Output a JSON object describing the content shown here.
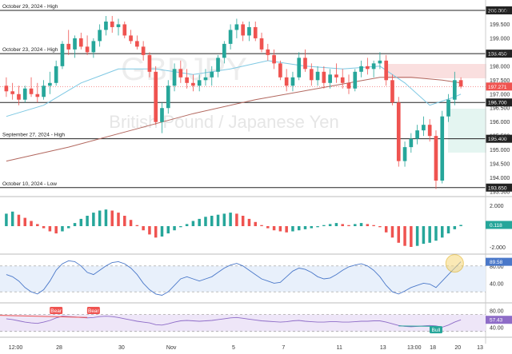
{
  "watermark": {
    "symbol": "GBPJPY",
    "subtitle": "British Pound / Japanese Yen"
  },
  "colors": {
    "up": "#26a69a",
    "down": "#ef5350",
    "ema_slow": "#b2675e",
    "ema_fast": "#7ec8e3",
    "stoch": "#4a78c9",
    "rsi": "#8e6cc7",
    "bear": "#ef5350",
    "bull": "#26a69a"
  },
  "time_axis": {
    "labels": [
      "12:00",
      "28",
      "30",
      "Nov",
      "5",
      "7",
      "11",
      "13",
      "13:00",
      "18",
      "20",
      "13"
    ]
  },
  "main_axis": {
    "ticks": [
      "200.000",
      "199.500",
      "199.000",
      "198.500",
      "198.000",
      "197.500",
      "197.000",
      "196.500",
      "196.000",
      "195.500",
      "195.000",
      "194.500",
      "194.000",
      "193.500"
    ],
    "current_price": "197.271"
  },
  "levels": [
    {
      "label": "October 29, 2024 - High",
      "price": "200.000"
    },
    {
      "label": "October 23, 2024 - High",
      "price": "198.450"
    },
    {
      "label": "",
      "price": "196.700"
    },
    {
      "label": "September 27, 2024 - High",
      "price": "195.400"
    },
    {
      "label": "October 10, 2024 - Low",
      "price": "193.650"
    }
  ],
  "ao_panel": {
    "ticks": [
      "2.000",
      "-2.000"
    ],
    "current": "0.118"
  },
  "stoch_panel": {
    "ticks": [
      "80.00",
      "40.00"
    ],
    "current": "89.58"
  },
  "rsi_panel": {
    "ticks": [
      "80.00",
      "40.00"
    ],
    "current": "57.43",
    "signals": [
      {
        "text": "Bear"
      },
      {
        "text": "Bear"
      },
      {
        "text": "Bull"
      }
    ]
  },
  "chart_data": {
    "type": "candlestick",
    "ylim": [
      193.5,
      200.2
    ],
    "candles": [
      [
        197.3,
        197.6,
        196.9,
        197.1
      ],
      [
        197.1,
        197.4,
        196.8,
        197.0
      ],
      [
        197.0,
        197.3,
        196.6,
        196.8
      ],
      [
        196.8,
        197.3,
        196.7,
        197.2
      ],
      [
        197.2,
        197.6,
        196.9,
        197.0
      ],
      [
        197.0,
        197.4,
        196.7,
        196.9
      ],
      [
        196.9,
        197.5,
        196.8,
        197.3
      ],
      [
        197.3,
        197.8,
        197.0,
        197.4
      ],
      [
        197.4,
        198.2,
        197.3,
        198.0
      ],
      [
        198.0,
        198.9,
        197.9,
        198.8
      ],
      [
        198.8,
        199.3,
        198.4,
        198.6
      ],
      [
        198.6,
        199.1,
        198.3,
        199.0
      ],
      [
        199.0,
        199.2,
        198.6,
        198.7
      ],
      [
        198.7,
        199.1,
        198.4,
        198.5
      ],
      [
        198.5,
        199.0,
        198.3,
        198.9
      ],
      [
        198.9,
        199.5,
        198.7,
        199.3
      ],
      [
        199.3,
        199.8,
        199.1,
        199.6
      ],
      [
        199.6,
        199.8,
        199.2,
        199.4
      ],
      [
        199.4,
        199.7,
        199.1,
        199.5
      ],
      [
        199.5,
        199.6,
        199.0,
        199.1
      ],
      [
        199.1,
        199.3,
        198.8,
        198.9
      ],
      [
        198.9,
        199.1,
        198.6,
        198.7
      ],
      [
        198.7,
        198.9,
        198.2,
        198.4
      ],
      [
        198.4,
        198.5,
        197.6,
        197.8
      ],
      [
        197.8,
        198.0,
        195.9,
        196.0
      ],
      [
        196.0,
        196.7,
        195.6,
        196.5
      ],
      [
        196.5,
        197.5,
        196.3,
        197.3
      ],
      [
        197.3,
        198.1,
        197.1,
        197.9
      ],
      [
        197.9,
        198.2,
        197.4,
        197.6
      ],
      [
        197.6,
        197.9,
        197.2,
        197.4
      ],
      [
        197.4,
        197.7,
        197.1,
        197.3
      ],
      [
        197.3,
        197.7,
        197.1,
        197.5
      ],
      [
        197.5,
        197.9,
        197.3,
        197.6
      ],
      [
        197.6,
        198.0,
        197.3,
        197.8
      ],
      [
        197.8,
        198.4,
        197.6,
        198.3
      ],
      [
        198.3,
        198.9,
        198.1,
        198.8
      ],
      [
        198.8,
        199.5,
        198.6,
        199.3
      ],
      [
        199.3,
        199.7,
        199.0,
        199.5
      ],
      [
        199.5,
        199.6,
        198.9,
        199.1
      ],
      [
        199.1,
        199.6,
        198.9,
        199.4
      ],
      [
        199.4,
        199.6,
        198.9,
        199.0
      ],
      [
        199.0,
        199.2,
        198.5,
        198.6
      ],
      [
        198.6,
        198.8,
        198.2,
        198.4
      ],
      [
        198.4,
        198.6,
        197.9,
        198.1
      ],
      [
        198.1,
        198.2,
        197.5,
        197.6
      ],
      [
        197.6,
        197.9,
        197.1,
        197.3
      ],
      [
        197.3,
        197.8,
        197.1,
        197.6
      ],
      [
        197.6,
        198.5,
        197.5,
        198.3
      ],
      [
        198.3,
        198.6,
        197.8,
        197.9
      ],
      [
        197.9,
        198.1,
        197.3,
        197.5
      ],
      [
        197.5,
        198.0,
        197.3,
        197.8
      ],
      [
        197.8,
        198.0,
        197.2,
        197.4
      ],
      [
        197.4,
        197.9,
        197.2,
        197.7
      ],
      [
        197.7,
        198.1,
        197.4,
        197.6
      ],
      [
        197.6,
        197.9,
        197.2,
        197.4
      ],
      [
        197.4,
        197.7,
        197.0,
        197.2
      ],
      [
        197.2,
        197.9,
        197.1,
        197.8
      ],
      [
        197.8,
        198.2,
        197.6,
        198.0
      ],
      [
        198.0,
        198.3,
        197.7,
        197.9
      ],
      [
        197.9,
        198.2,
        197.6,
        198.1
      ],
      [
        198.1,
        198.5,
        197.9,
        198.2
      ],
      [
        198.2,
        198.4,
        197.3,
        197.5
      ],
      [
        197.5,
        197.7,
        196.6,
        196.7
      ],
      [
        196.7,
        196.9,
        194.4,
        194.6
      ],
      [
        194.6,
        195.3,
        194.4,
        195.1
      ],
      [
        195.1,
        195.6,
        194.9,
        195.4
      ],
      [
        195.4,
        195.9,
        195.2,
        195.7
      ],
      [
        195.7,
        196.2,
        195.5,
        195.9
      ],
      [
        195.9,
        196.1,
        195.3,
        195.5
      ],
      [
        195.5,
        195.7,
        193.6,
        193.9
      ],
      [
        193.9,
        196.4,
        193.8,
        196.2
      ],
      [
        196.2,
        197.0,
        196.0,
        196.8
      ],
      [
        196.8,
        197.8,
        196.6,
        197.5
      ],
      [
        197.5,
        197.6,
        197.2,
        197.27
      ]
    ],
    "ema_slow": [
      [
        0,
        194.6
      ],
      [
        10,
        195.1
      ],
      [
        20,
        195.7
      ],
      [
        30,
        196.3
      ],
      [
        40,
        196.8
      ],
      [
        50,
        197.2
      ],
      [
        55,
        197.4
      ],
      [
        60,
        197.6
      ],
      [
        65,
        197.6
      ],
      [
        70,
        197.5
      ],
      [
        73,
        197.4
      ]
    ],
    "ema_fast": [
      [
        0,
        196.2
      ],
      [
        6,
        196.6
      ],
      [
        12,
        197.4
      ],
      [
        18,
        197.9
      ],
      [
        24,
        197.9
      ],
      [
        30,
        197.7
      ],
      [
        36,
        197.9
      ],
      [
        42,
        198.2
      ],
      [
        48,
        198.0
      ],
      [
        54,
        197.9
      ],
      [
        60,
        198.0
      ],
      [
        64,
        197.4
      ],
      [
        68,
        196.6
      ],
      [
        72,
        196.9
      ],
      [
        73,
        197.0
      ]
    ],
    "ao": [
      1.2,
      1.4,
      1.1,
      0.8,
      0.5,
      0.2,
      -0.2,
      -0.5,
      -0.7,
      -0.5,
      -0.2,
      0.3,
      0.7,
      1.0,
      1.3,
      1.5,
      1.6,
      1.5,
      1.3,
      1.0,
      0.6,
      0.1,
      -0.4,
      -0.8,
      -1.1,
      -1.0,
      -0.7,
      -0.4,
      -0.1,
      0.2,
      0.5,
      0.7,
      0.9,
      1.0,
      1.1,
      1.2,
      1.3,
      1.2,
      1.0,
      0.7,
      0.4,
      0.1,
      -0.2,
      -0.4,
      -0.5,
      -0.6,
      -0.5,
      -0.4,
      -0.3,
      -0.2,
      -0.1,
      0.1,
      0.2,
      0.3,
      0.2,
      0.1,
      0.2,
      0.3,
      0.2,
      0.1,
      -0.1,
      -0.6,
      -1.1,
      -1.6,
      -1.9,
      -2.0,
      -1.9,
      -1.7,
      -1.6,
      -1.4,
      -1.1,
      -0.7,
      -0.3,
      0.118
    ],
    "stoch": [
      60,
      55,
      45,
      30,
      20,
      15,
      25,
      45,
      70,
      85,
      92,
      90,
      80,
      65,
      60,
      70,
      80,
      88,
      90,
      85,
      75,
      60,
      40,
      25,
      15,
      12,
      20,
      35,
      50,
      55,
      50,
      45,
      50,
      55,
      65,
      75,
      82,
      86,
      80,
      70,
      60,
      50,
      45,
      40,
      42,
      55,
      68,
      75,
      72,
      65,
      55,
      50,
      52,
      60,
      70,
      78,
      82,
      85,
      80,
      70,
      55,
      35,
      20,
      15,
      22,
      30,
      35,
      40,
      38,
      30,
      45,
      60,
      75,
      89.58
    ],
    "rsi": [
      60,
      58,
      55,
      52,
      50,
      49,
      52,
      56,
      62,
      66,
      65,
      64,
      63,
      62,
      63,
      65,
      66,
      65,
      63,
      60,
      57,
      54,
      52,
      50,
      46,
      45,
      48,
      52,
      55,
      56,
      55,
      54,
      55,
      56,
      58,
      60,
      62,
      63,
      61,
      59,
      57,
      55,
      54,
      53,
      52,
      53,
      55,
      56,
      54,
      53,
      52,
      52,
      53,
      53,
      52,
      52,
      53,
      54,
      54,
      55,
      55,
      52,
      48,
      44,
      42,
      41,
      42,
      43,
      44,
      43,
      40,
      45,
      52,
      57.43
    ]
  }
}
